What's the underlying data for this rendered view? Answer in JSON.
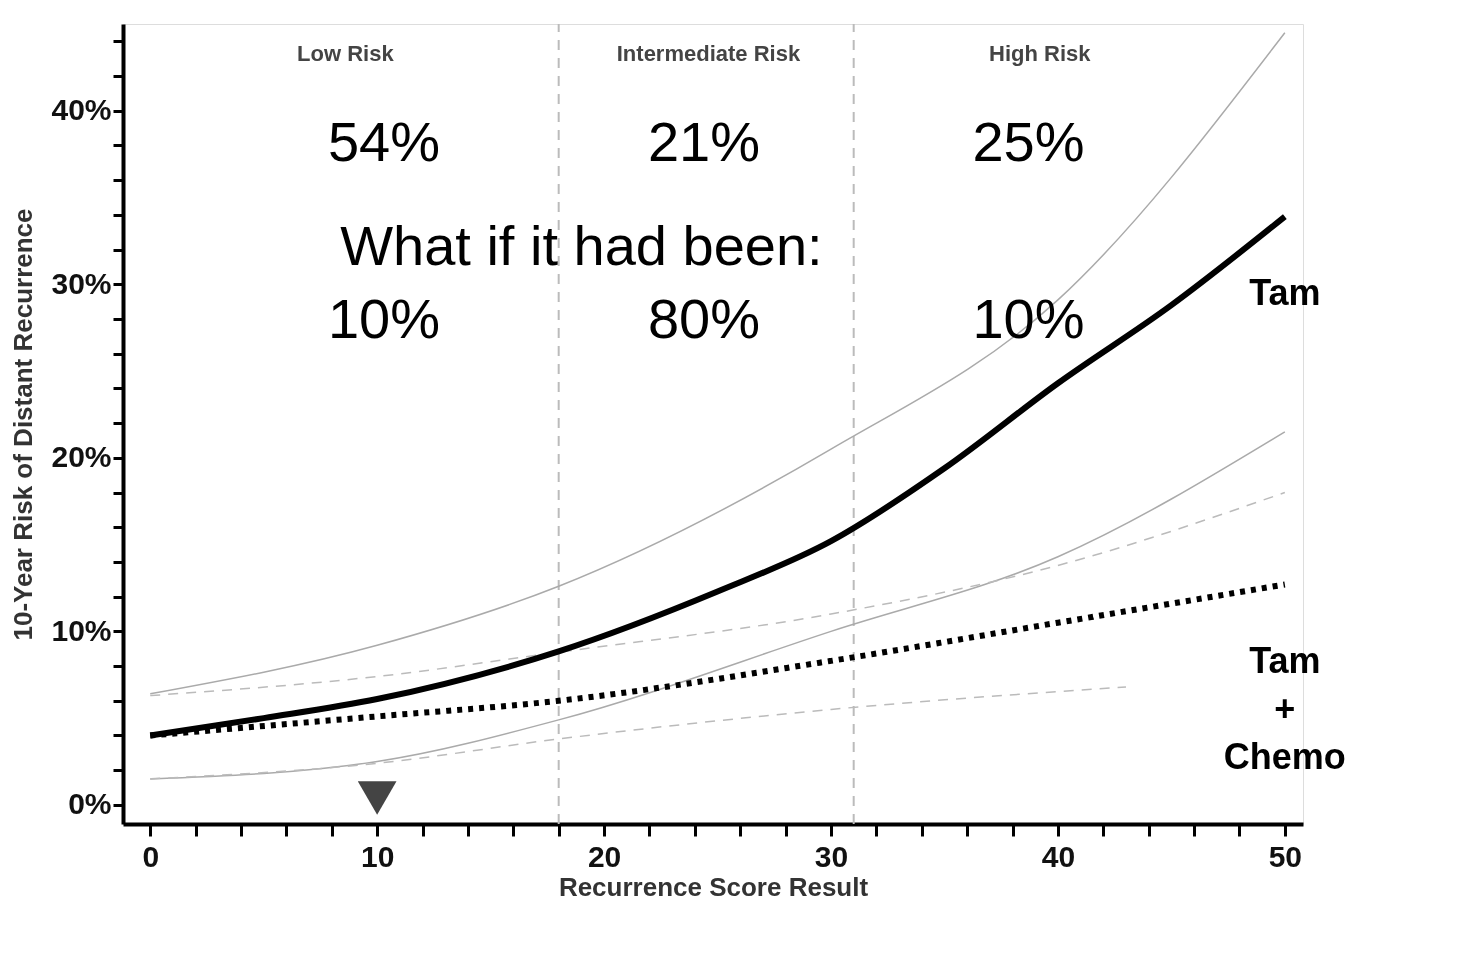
{
  "chart_data": {
    "type": "line",
    "xlabel": "Recurrence Score Result",
    "ylabel": "10-Year Risk of Distant Recurrence",
    "xlim": [
      -1.2,
      50.8
    ],
    "ylim": [
      -1.1,
      45
    ],
    "xticks": [
      0,
      {
        "value": 2,
        "label": null
      },
      {
        "value": 4,
        "label": null
      },
      {
        "value": 6,
        "label": null
      },
      {
        "value": 8,
        "label": null
      },
      10,
      {
        "value": 12,
        "label": null
      },
      {
        "value": 14,
        "label": null
      },
      {
        "value": 16,
        "label": null
      },
      {
        "value": 18,
        "label": null
      },
      20,
      {
        "value": 22,
        "label": null
      },
      {
        "value": 24,
        "label": null
      },
      {
        "value": 26,
        "label": null
      },
      {
        "value": 28,
        "label": null
      },
      30,
      {
        "value": 32,
        "label": null
      },
      {
        "value": 34,
        "label": null
      },
      {
        "value": 36,
        "label": null
      },
      {
        "value": 38,
        "label": null
      },
      40,
      {
        "value": 42,
        "label": null
      },
      {
        "value": 44,
        "label": null
      },
      {
        "value": 46,
        "label": null
      },
      {
        "value": 48,
        "label": null
      },
      50
    ],
    "yticks": [
      {
        "value": 0,
        "label": "0%"
      },
      {
        "value": 2,
        "label": null
      },
      {
        "value": 4,
        "label": null
      },
      {
        "value": 6,
        "label": null
      },
      {
        "value": 8,
        "label": null
      },
      {
        "value": 10,
        "label": "10%"
      },
      {
        "value": 12,
        "label": null
      },
      {
        "value": 14,
        "label": null
      },
      {
        "value": 16,
        "label": null
      },
      {
        "value": 18,
        "label": null
      },
      {
        "value": 20,
        "label": "20%"
      },
      {
        "value": 22,
        "label": null
      },
      {
        "value": 24,
        "label": null
      },
      {
        "value": 26,
        "label": null
      },
      {
        "value": 28,
        "label": null
      },
      {
        "value": 30,
        "label": "30%"
      },
      {
        "value": 32,
        "label": null
      },
      {
        "value": 34,
        "label": null
      },
      {
        "value": 36,
        "label": null
      },
      {
        "value": 38,
        "label": null
      },
      {
        "value": 40,
        "label": "40%"
      },
      {
        "value": 42,
        "label": null
      },
      {
        "value": 44,
        "label": null
      }
    ],
    "grid": false,
    "series": [
      {
        "color": "#aaaaaa",
        "line_style": "solid",
        "x": [
          0,
          10,
          18,
          30,
          40,
          50
        ],
        "values": [
          6.4,
          9.2,
          12.6,
          20.5,
          29.1,
          44.5
        ]
      },
      {
        "color": "#aaaaaa",
        "line_style": "solid",
        "x": [
          0,
          10,
          18,
          30,
          40,
          50
        ],
        "values": [
          1.5,
          2.5,
          4.9,
          10.0,
          14.3,
          21.5
        ]
      },
      {
        "color": "#bbbbbb",
        "line_style": "dashed",
        "x": [
          0,
          10,
          18,
          30,
          40,
          50
        ],
        "values": [
          6.3,
          7.4,
          8.8,
          11.0,
          13.8,
          18.0
        ]
      },
      {
        "color": "#bbbbbb",
        "line_style": "dashed",
        "x": [
          0,
          10,
          18,
          30,
          43
        ],
        "values": [
          1.5,
          2.4,
          3.8,
          5.5,
          6.8
        ]
      },
      {
        "name": "Tam",
        "color": "#000000",
        "line_style": "solid",
        "x": [
          0,
          5,
          10,
          18,
          25,
          30,
          35,
          40,
          45,
          50
        ],
        "values": [
          4.0,
          5.0,
          6.1,
          8.85,
          12.3,
          15.2,
          19.4,
          24.3,
          28.8,
          33.9
        ]
      },
      {
        "name": "Tam + Chemo",
        "color": "#000000",
        "line_style": "dotted",
        "x": [
          0,
          10,
          18,
          30,
          40,
          50
        ],
        "values": [
          4.0,
          5.1,
          6.0,
          8.3,
          10.5,
          12.7
        ]
      },
      {
        "type": "scatter",
        "marker": "triangle",
        "color": "#444444",
        "x": [
          10
        ],
        "values": [
          0.4
        ]
      }
    ],
    "ref_lines": [
      {
        "axis": "x",
        "value": 18,
        "line_style": "dashed",
        "color": "#bbbbbb"
      },
      {
        "axis": "x",
        "value": 31,
        "line_style": "dashed",
        "color": "#bbbbbb"
      }
    ],
    "annotations": [
      "Low Risk",
      "Intermediate Risk",
      "High Risk",
      "54%",
      "21%",
      "25%",
      "What if it had been:",
      "10%",
      "80%",
      "10%"
    ]
  }
}
